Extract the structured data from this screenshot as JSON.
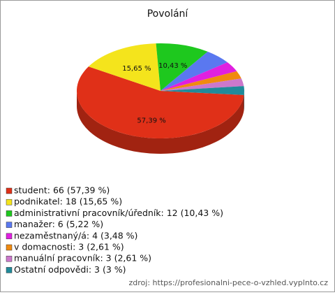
{
  "chart_data": {
    "type": "pie",
    "title": "Povolání",
    "categories": [
      "student",
      "podnikatel",
      "administrativní pracovník/úředník",
      "manažer",
      "nezaměstnaný/á",
      "v domacnosti",
      "manuální pracovník",
      "Ostatní odpovědi"
    ],
    "values": [
      57.39,
      15.65,
      10.43,
      5.22,
      3.48,
      2.61,
      2.61,
      3
    ],
    "value_labels": [
      "57,39 %",
      "15,65 %",
      "10,43 %",
      null,
      null,
      null,
      null,
      null
    ],
    "legend_labels": [
      "student: 66 (57,39 %)",
      "podnikatel: 18 (15,65 %)",
      "administrativní pracovník/úředník: 12 (10,43 %)",
      "manažer: 6 (5,22 %)",
      "nezaměstnaný/á: 4 (3,48 %)",
      "v domacnosti: 3 (2,61 %)",
      "manuální pracovník: 3 (2,61 %)",
      "Ostatní odpovědi: 3 (3 %)"
    ],
    "colors": [
      "#e03018",
      "#f4e41c",
      "#1ec81e",
      "#5a78f0",
      "#e020e0",
      "#f08a10",
      "#cc78cc",
      "#208a9a"
    ],
    "legend": "bottom-left",
    "source": "zdroj: https://profesionalni-pece-o-vzhled.vyplnto.cz"
  }
}
